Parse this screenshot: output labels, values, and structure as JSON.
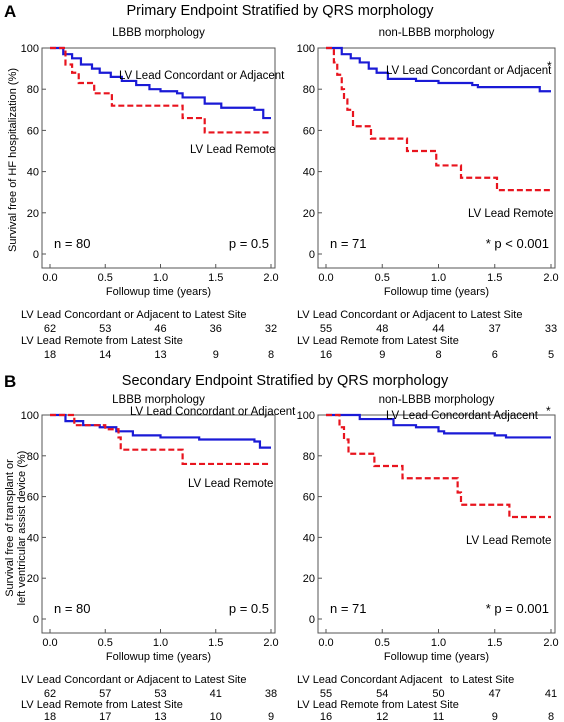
{
  "panels": [
    {
      "letter": "A",
      "title": "Primary Endpoint Stratified by QRS morphology",
      "ylabel": "Survival free of HF hospitalization (%)",
      "risk_row1_label": "LV Lead Concordant or Adjacent to Latest Site",
      "risk_row2_label": "LV Lead Remote from Latest Site"
    },
    {
      "letter": "B",
      "title": "Secondary Endpoint Stratified by QRS morphology",
      "ylabel_lines": [
        "Survival free of transplant or",
        "left ventricular assist device (%)"
      ],
      "risk_row1_label": "LV Lead Concordant or Adjacent to Latest Site",
      "risk_row2_label": "LV Lead Remote from Latest Site"
    }
  ],
  "colors": {
    "concordant": "#1a1ad6",
    "remote": "#e8141e",
    "axis": "#555555"
  },
  "chart_data": [
    {
      "type": "line",
      "subtitle": "LBBB morphology",
      "xlabel": "Followup time (years)",
      "ylabel": "Survival free of HF hospitalization (%)",
      "xlim": [
        0,
        2
      ],
      "ylim": [
        0,
        100
      ],
      "xticks": [
        "0.0",
        "0.5",
        "1.0",
        "1.5",
        "2.0"
      ],
      "yticks": [
        "0",
        "20",
        "40",
        "60",
        "80",
        "100"
      ],
      "n_text": "n = 80",
      "p_text": "p = 0.5",
      "star": "",
      "series": [
        {
          "name": "LV Lead Concordant or Adjacent",
          "style": "solid",
          "points": [
            [
              0,
              100
            ],
            [
              0.1,
              100
            ],
            [
              0.12,
              97
            ],
            [
              0.2,
              95
            ],
            [
              0.28,
              92
            ],
            [
              0.38,
              90
            ],
            [
              0.45,
              88
            ],
            [
              0.55,
              86
            ],
            [
              0.65,
              84
            ],
            [
              0.78,
              82
            ],
            [
              0.9,
              80
            ],
            [
              1.0,
              79
            ],
            [
              1.15,
              78
            ],
            [
              1.2,
              76
            ],
            [
              1.4,
              73
            ],
            [
              1.55,
              71
            ],
            [
              1.85,
              70
            ],
            [
              1.93,
              66
            ],
            [
              2.0,
              66
            ]
          ]
        },
        {
          "name": "LV Lead Remote",
          "style": "dashed",
          "points": [
            [
              0,
              100
            ],
            [
              0.12,
              100
            ],
            [
              0.14,
              92
            ],
            [
              0.2,
              88
            ],
            [
              0.26,
              83
            ],
            [
              0.35,
              83
            ],
            [
              0.4,
              78
            ],
            [
              0.52,
              78
            ],
            [
              0.56,
              72
            ],
            [
              1.18,
              72
            ],
            [
              1.2,
              66
            ],
            [
              1.37,
              66
            ],
            [
              1.4,
              59
            ],
            [
              2.0,
              59
            ]
          ]
        }
      ],
      "risk_table": {
        "x": [
          0,
          0.5,
          1.0,
          1.5,
          2.0
        ],
        "row1": [
          "62",
          "53",
          "46",
          "36",
          "32"
        ],
        "row2": [
          "18",
          "14",
          "13",
          "9",
          "8"
        ]
      }
    },
    {
      "type": "line",
      "subtitle": "non-LBBB morphology",
      "xlabel": "Followup time (years)",
      "ylabel": "Survival free of HF hospitalization (%)",
      "xlim": [
        0,
        2
      ],
      "ylim": [
        0,
        100
      ],
      "xticks": [
        "0.0",
        "0.5",
        "1.0",
        "1.5",
        "2.0"
      ],
      "yticks": [
        "0",
        "20",
        "40",
        "60",
        "80",
        "100"
      ],
      "n_text": "n = 71",
      "p_text": "p < 0.001",
      "star": "*",
      "series": [
        {
          "name": "LV Lead Concordant or Adjacent",
          "style": "solid",
          "points": [
            [
              0,
              100
            ],
            [
              0.1,
              100
            ],
            [
              0.14,
              97
            ],
            [
              0.22,
              95
            ],
            [
              0.3,
              93
            ],
            [
              0.38,
              90
            ],
            [
              0.45,
              88
            ],
            [
              0.55,
              85
            ],
            [
              0.7,
              85
            ],
            [
              0.8,
              84
            ],
            [
              1.0,
              83
            ],
            [
              1.3,
              82
            ],
            [
              1.35,
              81
            ],
            [
              1.85,
              81
            ],
            [
              1.9,
              79
            ],
            [
              2.0,
              79
            ]
          ]
        },
        {
          "name": "LV Lead Remote",
          "style": "dashed",
          "points": [
            [
              0,
              100
            ],
            [
              0.05,
              100
            ],
            [
              0.07,
              93
            ],
            [
              0.1,
              87
            ],
            [
              0.14,
              80
            ],
            [
              0.16,
              75
            ],
            [
              0.19,
              70
            ],
            [
              0.24,
              62
            ],
            [
              0.36,
              62
            ],
            [
              0.4,
              56
            ],
            [
              0.7,
              56
            ],
            [
              0.72,
              50
            ],
            [
              0.95,
              50
            ],
            [
              0.98,
              43
            ],
            [
              1.18,
              43
            ],
            [
              1.2,
              37
            ],
            [
              1.5,
              37
            ],
            [
              1.52,
              31
            ],
            [
              2.0,
              31
            ]
          ]
        }
      ],
      "risk_table": {
        "x": [
          0,
          0.5,
          1.0,
          1.5,
          2.0
        ],
        "row1": [
          "55",
          "48",
          "44",
          "37",
          "33"
        ],
        "row2": [
          "16",
          "9",
          "8",
          "6",
          "5"
        ]
      }
    },
    {
      "type": "line",
      "subtitle": "LBBB morphology",
      "xlabel": "Followup time (years)",
      "ylabel": "Survival free of transplant or left ventricular assist device (%)",
      "xlim": [
        0,
        2
      ],
      "ylim": [
        0,
        100
      ],
      "xticks": [
        "0.0",
        "0.5",
        "1.0",
        "1.5",
        "2.0"
      ],
      "yticks": [
        "0",
        "20",
        "40",
        "60",
        "80",
        "100"
      ],
      "n_text": "n = 80",
      "p_text": "p = 0.5",
      "star": "",
      "series": [
        {
          "name": "LV Lead Concordant or Adjacent",
          "style": "solid",
          "points": [
            [
              0,
              100
            ],
            [
              0.12,
              100
            ],
            [
              0.14,
              97
            ],
            [
              0.3,
              95
            ],
            [
              0.45,
              94
            ],
            [
              0.6,
              92
            ],
            [
              0.75,
              90
            ],
            [
              1.0,
              89
            ],
            [
              1.35,
              88
            ],
            [
              1.85,
              87
            ],
            [
              1.9,
              84
            ],
            [
              2.0,
              84
            ]
          ]
        },
        {
          "name": "LV Lead Remote",
          "style": "dashed",
          "points": [
            [
              0,
              100
            ],
            [
              0.2,
              100
            ],
            [
              0.22,
              95
            ],
            [
              0.48,
              95
            ],
            [
              0.5,
              93
            ],
            [
              0.6,
              93
            ],
            [
              0.62,
              89
            ],
            [
              0.64,
              83
            ],
            [
              1.18,
              83
            ],
            [
              1.2,
              76
            ],
            [
              2.0,
              76
            ]
          ]
        }
      ],
      "risk_table": {
        "x": [
          0,
          0.5,
          1.0,
          1.5,
          2.0
        ],
        "row1": [
          "62",
          "57",
          "53",
          "41",
          "38"
        ],
        "row2": [
          "18",
          "17",
          "13",
          "10",
          "9"
        ]
      }
    },
    {
      "type": "line",
      "subtitle": "non-LBBB morphology",
      "xlabel": "Followup time (years)",
      "ylabel": "Survival free of transplant or left ventricular assist device (%)",
      "xlim": [
        0,
        2
      ],
      "ylim": [
        0,
        100
      ],
      "xticks": [
        "0.0",
        "0.5",
        "1.0",
        "1.5",
        "2.0"
      ],
      "yticks": [
        "0",
        "20",
        "40",
        "60",
        "80",
        "100"
      ],
      "n_text": "n = 71",
      "p_text": "p = 0.001",
      "star": "*",
      "series": [
        {
          "name": "LV Lead Concordant Adjacent",
          "style": "solid",
          "points": [
            [
              0,
              100
            ],
            [
              0.25,
              100
            ],
            [
              0.3,
              98
            ],
            [
              0.55,
              98
            ],
            [
              0.6,
              95
            ],
            [
              0.8,
              94
            ],
            [
              1.0,
              92
            ],
            [
              1.05,
              91
            ],
            [
              1.5,
              90
            ],
            [
              1.6,
              89
            ],
            [
              2.0,
              89
            ]
          ]
        },
        {
          "name": "LV Lead Remote",
          "style": "dashed",
          "points": [
            [
              0,
              100
            ],
            [
              0.1,
              100
            ],
            [
              0.12,
              94
            ],
            [
              0.16,
              88
            ],
            [
              0.2,
              81
            ],
            [
              0.4,
              81
            ],
            [
              0.43,
              75
            ],
            [
              0.65,
              75
            ],
            [
              0.68,
              69
            ],
            [
              1.15,
              69
            ],
            [
              1.17,
              62
            ],
            [
              1.2,
              56
            ],
            [
              1.6,
              56
            ],
            [
              1.63,
              50
            ],
            [
              2.0,
              50
            ]
          ]
        }
      ],
      "risk_table": {
        "x": [
          0,
          0.5,
          1.0,
          1.5,
          2.0
        ],
        "row1": [
          "55",
          "54",
          "50",
          "47",
          "41"
        ],
        "row2": [
          "16",
          "12",
          "11",
          "9",
          "8"
        ]
      }
    }
  ]
}
